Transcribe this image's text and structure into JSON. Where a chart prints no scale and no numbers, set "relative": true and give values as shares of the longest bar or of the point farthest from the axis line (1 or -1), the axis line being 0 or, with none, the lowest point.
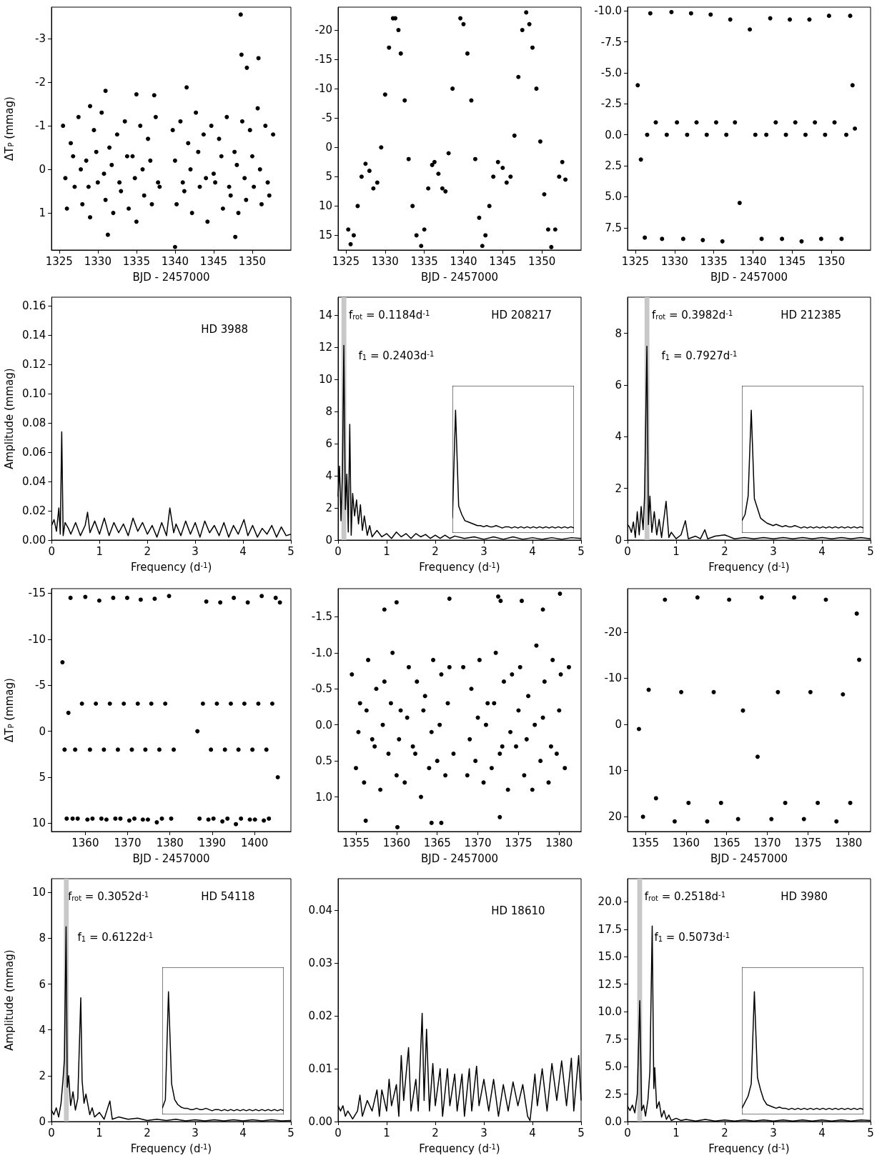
{
  "chart_data": [
    {
      "type": "scatter",
      "xlabel": "BJD - 2457000",
      "ylabel": "ΔT$_{P}$ (mmag)",
      "xlim": [
        1324,
        1355
      ],
      "xticks": [
        1325,
        1330,
        1335,
        1340,
        1345,
        1350
      ],
      "ylim": [
        1.85,
        -3.72
      ],
      "yticks": [
        -3,
        -2,
        -1,
        0,
        1
      ],
      "marker": "circle",
      "series": [
        {
          "color": "#000000",
          "x": [
            1325.5,
            1326,
            1326.5,
            1327,
            1327.5,
            1328,
            1328.5,
            1329,
            1329.5,
            1330,
            1330.5,
            1331,
            1331.5,
            1332,
            1332.5,
            1333,
            1333.5,
            1334,
            1334.5,
            1335,
            1335.5,
            1336,
            1336.5,
            1337,
            1337.5,
            1338,
            1339.7,
            1340.2,
            1340.7,
            1341.2,
            1341.7,
            1342.2,
            1342.7,
            1343.2,
            1343.7,
            1344.2,
            1344.7,
            1345.2,
            1345.7,
            1346.2,
            1346.7,
            1347.2,
            1347.7,
            1348.2,
            1348.7,
            1349.2,
            1349.7,
            1350.2,
            1350.7,
            1351.2,
            1351.7,
            1352.2,
            1352.7,
            1325.8,
            1326.8,
            1327.8,
            1328.8,
            1329.8,
            1330.8,
            1331.8,
            1332.8,
            1333.8,
            1334.8,
            1335.8,
            1336.8,
            1337.8,
            1340,
            1341,
            1342,
            1343,
            1344,
            1345,
            1346,
            1347,
            1348,
            1349,
            1350,
            1351,
            1352,
            1348.5,
            1348.6,
            1350.8,
            1349.3,
            1331,
            1335,
            1337.3,
            1341.5,
            1340,
            1331.3,
            1347.8,
            1329
          ],
          "values": [
            -1.0,
            0.9,
            -0.6,
            0.4,
            -1.2,
            0.8,
            -0.2,
            1.1,
            -0.9,
            0.3,
            -1.3,
            0.7,
            -0.5,
            1.0,
            -0.8,
            0.5,
            -1.1,
            0.9,
            -0.3,
            1.2,
            -1.0,
            0.6,
            -0.7,
            0.8,
            -1.2,
            0.4,
            -0.9,
            0.8,
            -1.1,
            0.5,
            -0.6,
            1.0,
            -1.3,
            0.4,
            -0.8,
            1.2,
            -1.0,
            0.3,
            -0.7,
            0.9,
            -1.2,
            0.6,
            -0.4,
            1.0,
            -1.1,
            0.7,
            -0.9,
            0.4,
            -1.4,
            0.8,
            -1.0,
            0.6,
            -0.8,
            0.2,
            -0.3,
            0.0,
            0.4,
            -0.4,
            0.1,
            -0.1,
            0.3,
            -0.3,
            0.2,
            0,
            -0.2,
            0.3,
            -0.2,
            0.3,
            0,
            -0.4,
            0.2,
            0.1,
            -0.3,
            0.4,
            -0.1,
            0.2,
            -0.3,
            0,
            0.3,
            -3.55,
            -2.63,
            -2.55,
            -2.33,
            -1.8,
            -1.72,
            -1.7,
            -1.88,
            1.78,
            1.5,
            1.55,
            -1.45
          ]
        }
      ]
    },
    {
      "type": "scatter",
      "xlabel": "BJD - 2457000",
      "xlim": [
        1324,
        1355
      ],
      "xticks": [
        1325,
        1330,
        1335,
        1340,
        1345,
        1350
      ],
      "ylim": [
        17.5,
        -23.9
      ],
      "yticks": [
        -20,
        -15,
        -10,
        -5,
        0,
        5,
        10,
        15
      ],
      "marker": "circle",
      "series": [
        {
          "color": "#000000",
          "x": [
            1325.3,
            1325.6,
            1326.0,
            1326.5,
            1327.0,
            1327.5,
            1328.0,
            1328.5,
            1329.0,
            1329.5,
            1330.0,
            1330.5,
            1331.0,
            1331.3,
            1331.7,
            1332.0,
            1332.5,
            1333.0,
            1333.5,
            1334.0,
            1334.6,
            1335.0,
            1335.5,
            1336.0,
            1336.3,
            1336.8,
            1337.3,
            1337.7,
            1338.1,
            1338.6,
            1339.6,
            1340.0,
            1340.5,
            1341.0,
            1341.5,
            1342.0,
            1342.4,
            1342.8,
            1343.3,
            1343.8,
            1344.4,
            1345.0,
            1345.5,
            1346.0,
            1346.5,
            1347.0,
            1347.5,
            1348.0,
            1348.4,
            1348.8,
            1349.3,
            1349.8,
            1350.3,
            1350.8,
            1351.2,
            1351.7,
            1352.2,
            1352.6,
            1353.0
          ],
          "values": [
            14,
            16.5,
            15,
            10,
            5,
            2.8,
            4,
            7,
            6,
            0,
            -9,
            -17,
            -22,
            -22,
            -20,
            -16,
            -8,
            2,
            10,
            15,
            16.8,
            14,
            7,
            3,
            2.5,
            4.5,
            7,
            7.5,
            1,
            -10,
            -22,
            -21,
            -16,
            -8,
            2,
            12,
            16.8,
            15,
            10,
            5,
            2.5,
            3.5,
            6,
            5,
            -2,
            -12,
            -20,
            -23,
            -21,
            -17,
            -10,
            -1,
            8,
            14,
            17,
            14,
            5,
            2.5,
            5.5
          ]
        }
      ]
    },
    {
      "type": "scatter",
      "xlabel": "BJD - 2457000",
      "xlim": [
        1324,
        1355
      ],
      "xticks": [
        1325,
        1330,
        1335,
        1340,
        1345,
        1350
      ],
      "ylim": [
        9.3,
        -10.3
      ],
      "yticks": [
        {
          "value": -10,
          "label": "-10.0"
        },
        -7.5,
        {
          "value": -5,
          "label": "-5.0"
        },
        -2.5,
        {
          "value": 0,
          "label": "0.0"
        },
        2.5,
        {
          "value": 5,
          "label": "5.0"
        },
        7.5
      ],
      "marker": "circle",
      "series": [
        {
          "color": "#000000",
          "x": [
            1325.3,
            1325.7,
            1326.2,
            1326.5,
            1326.9,
            1327.6,
            1328.4,
            1329.0,
            1329.6,
            1330.3,
            1331.1,
            1331.6,
            1332.1,
            1332.8,
            1333.6,
            1334.1,
            1334.6,
            1335.3,
            1336.1,
            1336.6,
            1337.1,
            1337.7,
            1338.3,
            1339.6,
            1340.3,
            1341.1,
            1341.7,
            1342.2,
            1342.9,
            1343.7,
            1344.2,
            1344.7,
            1345.4,
            1346.2,
            1346.7,
            1347.2,
            1347.9,
            1348.7,
            1349.2,
            1349.7,
            1350.4,
            1351.3,
            1351.9,
            1352.4,
            1352.7,
            1353.0
          ],
          "values": [
            -4,
            2,
            8.3,
            0,
            -9.8,
            -1,
            8.4,
            0,
            -9.9,
            -1,
            8.4,
            0,
            -9.8,
            -1,
            8.5,
            0,
            -9.7,
            -1,
            8.6,
            0,
            -9.3,
            -1,
            5.5,
            -8.5,
            0,
            8.4,
            0,
            -9.4,
            -1,
            8.4,
            0,
            -9.3,
            -1,
            8.6,
            0,
            -9.3,
            -1,
            8.4,
            0,
            -9.6,
            -1,
            8.4,
            0,
            -9.6,
            -4,
            -0.5
          ]
        }
      ]
    },
    {
      "type": "line",
      "xlabel": "Frequency (d$^{-1}$)",
      "ylabel": "Amplitude (mmag)",
      "xlim": [
        0,
        5
      ],
      "xticks": [
        0,
        1,
        2,
        3,
        4,
        5
      ],
      "ylim": [
        0,
        0.166
      ],
      "yticks": [
        {
          "value": 0,
          "label": "0.00"
        },
        0.02,
        0.04,
        0.06,
        0.08,
        {
          "value": 0.1,
          "label": "0.10"
        },
        0.12,
        0.14,
        0.16
      ],
      "marker": "none",
      "annotations": [
        "HD 3988"
      ],
      "series": [
        {
          "color": "#000000",
          "x": [
            0,
            0.05,
            0.1,
            0.15,
            0.18,
            0.21,
            0.24,
            0.28,
            0.35,
            0.4,
            0.5,
            0.6,
            0.7,
            0.75,
            0.8,
            0.9,
            1.0,
            1.1,
            1.2,
            1.3,
            1.4,
            1.5,
            1.6,
            1.7,
            1.8,
            1.9,
            2.0,
            2.1,
            2.2,
            2.3,
            2.4,
            2.47,
            2.55,
            2.6,
            2.7,
            2.8,
            2.9,
            3.0,
            3.1,
            3.2,
            3.3,
            3.4,
            3.5,
            3.6,
            3.7,
            3.8,
            3.9,
            4.02,
            4.1,
            4.2,
            4.3,
            4.4,
            4.5,
            4.6,
            4.7,
            4.8,
            4.9,
            5.0
          ],
          "values": [
            0.01,
            0.014,
            0.006,
            0.022,
            0.004,
            0.074,
            0.003,
            0.012,
            0.008,
            0.004,
            0.012,
            0.003,
            0.01,
            0.019,
            0.005,
            0.013,
            0.004,
            0.015,
            0.003,
            0.012,
            0.005,
            0.011,
            0.003,
            0.015,
            0.006,
            0.012,
            0.004,
            0.01,
            0.002,
            0.012,
            0.003,
            0.022,
            0.005,
            0.011,
            0.003,
            0.013,
            0.004,
            0.012,
            0.002,
            0.013,
            0.005,
            0.01,
            0.003,
            0.012,
            0.002,
            0.01,
            0.004,
            0.014,
            0.003,
            0.01,
            0.002,
            0.008,
            0.004,
            0.01,
            0.002,
            0.009,
            0.003,
            0.004
          ]
        }
      ]
    },
    {
      "type": "line",
      "xlabel": "Frequency (d$^{-1}$)",
      "xlim": [
        0,
        5
      ],
      "xticks": [
        0,
        1,
        2,
        3,
        4,
        5
      ],
      "ylim": [
        0,
        15.1
      ],
      "yticks": [
        0,
        2,
        4,
        6,
        8,
        10,
        12,
        14
      ],
      "marker": "none",
      "annotations": [
        "f$_{rot}$ = 0.1184d$^{-1}$",
        "f$_{1}$ = 0.2403d$^{-1}$",
        "HD 208217"
      ],
      "bands": [
        {
          "axis": "x",
          "from": 0.07,
          "to": 0.17,
          "color": "#c8c8c8"
        }
      ],
      "series": [
        {
          "color": "#000000",
          "x": [
            0,
            0.03,
            0.06,
            0.09,
            0.1184,
            0.15,
            0.18,
            0.21,
            0.2403,
            0.27,
            0.3,
            0.34,
            0.38,
            0.42,
            0.46,
            0.5,
            0.54,
            0.6,
            0.65,
            0.7,
            0.8,
            0.9,
            1.0,
            1.1,
            1.2,
            1.3,
            1.4,
            1.5,
            1.6,
            1.7,
            1.8,
            1.9,
            2.0,
            2.1,
            2.2,
            2.3,
            2.4,
            2.6,
            2.8,
            3.0,
            3.2,
            3.4,
            3.6,
            3.8,
            4.0,
            4.2,
            4.4,
            4.6,
            4.8,
            5.0
          ],
          "values": [
            2.7,
            4.6,
            1.2,
            4.2,
            12.1,
            1.9,
            4.1,
            0.5,
            7.2,
            0.3,
            2.9,
            1.5,
            2.5,
            1.0,
            2.2,
            0.6,
            1.5,
            0.3,
            0.9,
            0.2,
            0.6,
            0.2,
            0.4,
            0.1,
            0.5,
            0.2,
            0.4,
            0.1,
            0.4,
            0.2,
            0.35,
            0.1,
            0.3,
            0.1,
            0.3,
            0.1,
            0.25,
            0.1,
            0.2,
            0.05,
            0.2,
            0.05,
            0.2,
            0.05,
            0.15,
            0.05,
            0.15,
            0.05,
            0.15,
            0.1
          ]
        }
      ]
    },
    {
      "type": "line",
      "relative": true,
      "tick_labels": false,
      "marker": "none",
      "categories": [
        null,
        null,
        null,
        null,
        null,
        null,
        null,
        null,
        null,
        null,
        null,
        null,
        null,
        null,
        null,
        null,
        null,
        null,
        null,
        null,
        null,
        null,
        null,
        null,
        null,
        null,
        null,
        null,
        null,
        null,
        null,
        null,
        null,
        null,
        null,
        null,
        null,
        null,
        null,
        null
      ],
      "series": [
        {
          "color": "#000000",
          "values": [
            0.12,
            1.0,
            0.22,
            0.15,
            0.1,
            0.09,
            0.08,
            0.07,
            0.06,
            0.06,
            0.05,
            0.06,
            0.05,
            0.05,
            0.06,
            0.05,
            0.04,
            0.05,
            0.05,
            0.04,
            0.05,
            0.04,
            0.05,
            0.04,
            0.05,
            0.04,
            0.05,
            0.04,
            0.05,
            0.04,
            0.05,
            0.04,
            0.05,
            0.04,
            0.05,
            0.04,
            0.05,
            0.04,
            0.05,
            0.04
          ]
        }
      ]
    },
    {
      "type": "line",
      "xlabel": "Frequency (d$^{-1}$)",
      "xlim": [
        0,
        5
      ],
      "xticks": [
        0,
        1,
        2,
        3,
        4,
        5
      ],
      "ylim": [
        0,
        9.4
      ],
      "yticks": [
        0,
        2,
        4,
        6,
        8
      ],
      "marker": "none",
      "annotations": [
        "f$_{rot}$ = 0.3982d$^{-1}$",
        "f$_{1}$ = 0.7927d$^{-1}$",
        "HD 212385"
      ],
      "bands": [
        {
          "axis": "x",
          "from": 0.35,
          "to": 0.45,
          "color": "#c8c8c8"
        }
      ],
      "series": [
        {
          "color": "#000000",
          "x": [
            0,
            0.04,
            0.08,
            0.12,
            0.16,
            0.2,
            0.24,
            0.28,
            0.32,
            0.35,
            0.3982,
            0.43,
            0.46,
            0.5,
            0.55,
            0.6,
            0.65,
            0.7,
            0.7927,
            0.85,
            0.9,
            1.0,
            1.1,
            1.19,
            1.25,
            1.4,
            1.5,
            1.59,
            1.65,
            1.8,
            2.0,
            2.2,
            2.4,
            2.6,
            2.8,
            3.0,
            3.2,
            3.4,
            3.6,
            3.8,
            4.0,
            4.2,
            4.4,
            4.6,
            4.8,
            5.0
          ],
          "values": [
            0.6,
            0.5,
            0.3,
            0.7,
            0.1,
            1.1,
            0.2,
            1.3,
            0.4,
            1.7,
            7.5,
            0.6,
            1.7,
            0.3,
            1.1,
            0.2,
            0.8,
            0.1,
            1.5,
            0.1,
            0.3,
            0.05,
            0.2,
            0.75,
            0.05,
            0.15,
            0.05,
            0.4,
            0.05,
            0.15,
            0.2,
            0.05,
            0.1,
            0.05,
            0.1,
            0.05,
            0.1,
            0.05,
            0.1,
            0.05,
            0.1,
            0.05,
            0.1,
            0.05,
            0.1,
            0.05
          ]
        }
      ]
    },
    {
      "type": "line",
      "relative": true,
      "tick_labels": false,
      "marker": "none",
      "categories": [
        null,
        null,
        null,
        null,
        null,
        null,
        null,
        null,
        null,
        null,
        null,
        null,
        null,
        null,
        null,
        null,
        null,
        null,
        null,
        null,
        null,
        null,
        null,
        null,
        null,
        null,
        null,
        null,
        null,
        null,
        null,
        null,
        null,
        null,
        null,
        null,
        null,
        null,
        null,
        null
      ],
      "series": [
        {
          "color": "#000000",
          "values": [
            0.1,
            0.15,
            0.3,
            1.0,
            0.28,
            0.2,
            0.12,
            0.1,
            0.08,
            0.07,
            0.06,
            0.07,
            0.06,
            0.05,
            0.06,
            0.05,
            0.05,
            0.06,
            0.05,
            0.04,
            0.05,
            0.04,
            0.05,
            0.04,
            0.05,
            0.04,
            0.05,
            0.04,
            0.05,
            0.04,
            0.05,
            0.04,
            0.05,
            0.04,
            0.05,
            0.04,
            0.05,
            0.04,
            0.05,
            0.04
          ]
        }
      ]
    },
    {
      "type": "scatter",
      "xlabel": "BJD - 2457000",
      "ylabel": "ΔT$_{P}$ (mmag)",
      "xlim": [
        1352,
        1408.6
      ],
      "xticks": [
        1360,
        1370,
        1380,
        1390,
        1400
      ],
      "ylim": [
        10.9,
        -15.5
      ],
      "yticks": [
        -15,
        -10,
        -5,
        0,
        5,
        10
      ],
      "marker": "circle",
      "series": [
        {
          "color": "#000000",
          "x": [
            1354.6,
            1355.1,
            1355.6,
            1356.0,
            1356.5,
            1357.0,
            1357.6,
            1358.2,
            1359.2,
            1360.0,
            1360.5,
            1361.1,
            1361.7,
            1362.5,
            1363.3,
            1363.8,
            1364.4,
            1365.0,
            1365.8,
            1366.6,
            1367.1,
            1367.7,
            1368.3,
            1369.1,
            1369.9,
            1370.4,
            1371.0,
            1371.6,
            1372.4,
            1373.1,
            1373.6,
            1374.2,
            1374.8,
            1375.6,
            1376.4,
            1376.9,
            1377.5,
            1378.1,
            1378.9,
            1379.8,
            1380.3,
            1380.9,
            1386.5,
            1387.0,
            1387.8,
            1388.6,
            1389.1,
            1389.7,
            1390.3,
            1391.1,
            1391.9,
            1392.4,
            1393.0,
            1393.6,
            1394.4,
            1395.1,
            1395.6,
            1396.2,
            1396.8,
            1397.6,
            1398.4,
            1398.9,
            1399.5,
            1400.1,
            1400.9,
            1401.7,
            1402.2,
            1402.8,
            1403.4,
            1404.2,
            1405.0,
            1405.5,
            1406.0
          ],
          "values": [
            -7.5,
            2,
            9.5,
            -2,
            -14.5,
            9.5,
            2,
            9.5,
            -3,
            -14.6,
            9.6,
            2,
            9.5,
            -3,
            -14.2,
            9.5,
            2,
            9.6,
            -3,
            -14.5,
            9.5,
            2,
            9.5,
            -3,
            -14.5,
            9.7,
            2,
            9.5,
            -3,
            -14.3,
            9.6,
            2,
            9.6,
            -3,
            -14.4,
            9.9,
            2,
            9.5,
            -3,
            -14.7,
            9.5,
            2,
            0,
            9.5,
            -3,
            -14.1,
            9.6,
            2,
            9.5,
            -3,
            -14.0,
            9.8,
            2,
            9.5,
            -3,
            -14.5,
            10.1,
            2,
            9.5,
            -3,
            -14.0,
            9.6,
            2,
            9.6,
            -3,
            -14.7,
            9.7,
            2,
            9.5,
            -3,
            -14.5,
            5,
            -14
          ]
        }
      ]
    },
    {
      "type": "scatter",
      "xlabel": "BJD - 2457000",
      "xlim": [
        1352.8,
        1382.7
      ],
      "xticks": [
        1355,
        1360,
        1365,
        1370,
        1375,
        1380
      ],
      "ylim": [
        1.48,
        -1.89
      ],
      "yticks": [
        -1.5,
        {
          "value": -1,
          "label": "-1.0"
        },
        -0.5,
        {
          "value": 0,
          "label": "0.0"
        },
        0.5,
        {
          "value": 1,
          "label": "1.0"
        }
      ],
      "marker": "circle",
      "series": [
        {
          "color": "#000000",
          "x": [
            1354.5,
            1355,
            1355.5,
            1356,
            1356.5,
            1357,
            1357.5,
            1358,
            1358.5,
            1359,
            1359.5,
            1360,
            1360.5,
            1361,
            1361.5,
            1362,
            1362.5,
            1363,
            1363.5,
            1364,
            1364.5,
            1365,
            1365.5,
            1366,
            1366.5,
            1367,
            1368.2,
            1368.7,
            1369.2,
            1369.7,
            1370.2,
            1370.7,
            1371.2,
            1371.7,
            1372.2,
            1372.7,
            1373.2,
            1373.7,
            1374.2,
            1374.7,
            1375.2,
            1375.7,
            1376.2,
            1376.7,
            1377.2,
            1377.7,
            1378.2,
            1378.7,
            1379.2,
            1379.7,
            1380.2,
            1380.7,
            1381.2,
            1355.3,
            1356.3,
            1357.3,
            1358.3,
            1359.3,
            1360.3,
            1361.3,
            1362.3,
            1363.3,
            1364.3,
            1365.3,
            1366.3,
            1369,
            1370,
            1371,
            1372,
            1373,
            1374,
            1375,
            1376,
            1377,
            1378,
            1379,
            1380,
            1358.5,
            1360,
            1366.5,
            1372.5,
            1372.8,
            1375.4,
            1380.1,
            1378,
            1360.1,
            1364.3,
            1365.5,
            1372.7,
            1356.2
          ],
          "values": [
            -0.7,
            0.6,
            -0.3,
            0.8,
            -0.9,
            0.2,
            -0.5,
            0.9,
            -0.6,
            0.4,
            -1.0,
            0.7,
            -0.2,
            0.8,
            -0.8,
            0.3,
            -0.6,
            1.0,
            -0.4,
            0.6,
            -0.9,
            0.5,
            -0.7,
            0.7,
            -0.8,
            0.4,
            -0.8,
            0.7,
            -0.5,
            0.5,
            -0.9,
            0.8,
            -0.3,
            0.6,
            -1.0,
            0.4,
            -0.6,
            0.9,
            -0.7,
            0.3,
            -0.8,
            0.7,
            -0.4,
            0.9,
            -1.1,
            0.5,
            -0.6,
            0.8,
            -0.9,
            0.4,
            -0.7,
            0.6,
            -0.8,
            0.1,
            -0.2,
            0.3,
            0,
            -0.3,
            0.2,
            -0.1,
            0.4,
            -0.2,
            0.1,
            0,
            -0.3,
            0.2,
            -0.1,
            0,
            -0.3,
            0.3,
            0.1,
            -0.2,
            0.2,
            0,
            -0.1,
            0.3,
            -0.2,
            -1.6,
            -1.7,
            -1.75,
            -1.78,
            -1.72,
            -1.72,
            -1.82,
            -1.6,
            1.42,
            1.36,
            1.36,
            1.28,
            1.33
          ]
        }
      ]
    },
    {
      "type": "scatter",
      "xlabel": "BJD - 2457000",
      "xlim": [
        1352.8,
        1382.7
      ],
      "xticks": [
        1355,
        1360,
        1365,
        1370,
        1375,
        1380
      ],
      "ylim": [
        23.2,
        -29.4
      ],
      "yticks": [
        -20,
        -10,
        0,
        10,
        20
      ],
      "marker": "circle",
      "series": [
        {
          "color": "#000000",
          "x": [
            1354.2,
            1354.7,
            1355.4,
            1356.3,
            1357.4,
            1358.6,
            1359.4,
            1360.3,
            1361.4,
            1362.6,
            1363.4,
            1364.3,
            1365.3,
            1366.4,
            1367.0,
            1368.8,
            1369.3,
            1370.5,
            1371.3,
            1372.2,
            1373.3,
            1374.5,
            1375.3,
            1376.2,
            1377.2,
            1378.5,
            1379.3,
            1380.2,
            1381.0,
            1381.3
          ],
          "values": [
            1,
            20,
            -7.5,
            16,
            -27,
            21,
            -7,
            17,
            -27.5,
            21,
            -7,
            17,
            -27,
            20.5,
            -3,
            7,
            -27.5,
            20.5,
            -7,
            17,
            -27.5,
            20.5,
            -7,
            17,
            -27,
            21,
            -6.5,
            17,
            -24,
            -14
          ]
        }
      ]
    },
    {
      "type": "line",
      "xlabel": "Frequency (d$^{-1}$)",
      "ylabel": "Amplitude (mmag)",
      "xlim": [
        0,
        5
      ],
      "xticks": [
        0,
        1,
        2,
        3,
        4,
        5
      ],
      "ylim": [
        0,
        10.6
      ],
      "yticks": [
        0,
        2,
        4,
        6,
        8,
        10
      ],
      "marker": "none",
      "annotations": [
        "f$_{rot}$ = 0.3052d$^{-1}$",
        "f$_{1}$ = 0.6122d$^{-1}$",
        "HD 54118"
      ],
      "bands": [
        {
          "axis": "x",
          "from": 0.26,
          "to": 0.36,
          "color": "#c8c8c8"
        }
      ],
      "series": [
        {
          "color": "#000000",
          "x": [
            0,
            0.05,
            0.1,
            0.15,
            0.2,
            0.24,
            0.27,
            0.3052,
            0.33,
            0.36,
            0.4,
            0.45,
            0.5,
            0.55,
            0.6122,
            0.64,
            0.68,
            0.72,
            0.8,
            0.85,
            0.9,
            1.0,
            1.1,
            1.22,
            1.27,
            1.4,
            1.6,
            1.8,
            2.0,
            2.2,
            2.4,
            2.6,
            2.8,
            3.0,
            3.2,
            3.4,
            3.6,
            3.8,
            4.0,
            4.2,
            4.4,
            4.6,
            4.8,
            5.0
          ],
          "values": [
            0.5,
            0.3,
            0.6,
            0.2,
            0.8,
            1.8,
            2.7,
            8.5,
            1.5,
            2.0,
            0.7,
            1.3,
            0.5,
            1.0,
            5.4,
            1.8,
            0.8,
            1.2,
            0.3,
            0.6,
            0.2,
            0.4,
            0.1,
            0.9,
            0.1,
            0.2,
            0.1,
            0.15,
            0.05,
            0.1,
            0.05,
            0.1,
            0.03,
            0.08,
            0.03,
            0.08,
            0.03,
            0.08,
            0.03,
            0.08,
            0.03,
            0.08,
            0.03,
            0.05
          ]
        }
      ]
    },
    {
      "type": "line",
      "relative": true,
      "tick_labels": false,
      "marker": "none",
      "categories": [
        null,
        null,
        null,
        null,
        null,
        null,
        null,
        null,
        null,
        null,
        null,
        null,
        null,
        null,
        null,
        null,
        null,
        null,
        null,
        null,
        null,
        null,
        null,
        null,
        null,
        null,
        null,
        null,
        null,
        null,
        null,
        null,
        null,
        null,
        null,
        null,
        null,
        null,
        null,
        null
      ],
      "series": [
        {
          "color": "#000000",
          "values": [
            0.05,
            0.12,
            1.0,
            0.25,
            0.12,
            0.08,
            0.06,
            0.05,
            0.05,
            0.04,
            0.04,
            0.05,
            0.04,
            0.04,
            0.05,
            0.04,
            0.03,
            0.04,
            0.04,
            0.03,
            0.04,
            0.03,
            0.04,
            0.03,
            0.04,
            0.03,
            0.04,
            0.03,
            0.04,
            0.03,
            0.04,
            0.03,
            0.04,
            0.03,
            0.04,
            0.03,
            0.04,
            0.03,
            0.04,
            0.03
          ]
        }
      ]
    },
    {
      "type": "line",
      "xlabel": "Frequency (d$^{-1}$)",
      "xlim": [
        0,
        5
      ],
      "xticks": [
        0,
        1,
        2,
        3,
        4,
        5
      ],
      "ylim": [
        0,
        0.046
      ],
      "yticks": [
        {
          "value": 0,
          "label": "0.00"
        },
        0.01,
        0.02,
        0.03,
        0.04
      ],
      "marker": "none",
      "annotations": [
        "HD 18610"
      ],
      "series": [
        {
          "color": "#000000",
          "x": [
            0,
            0.05,
            0.1,
            0.15,
            0.2,
            0.3,
            0.4,
            0.45,
            0.5,
            0.6,
            0.7,
            0.8,
            0.85,
            0.9,
            1.0,
            1.05,
            1.1,
            1.2,
            1.25,
            1.3,
            1.35,
            1.45,
            1.5,
            1.6,
            1.65,
            1.73,
            1.77,
            1.82,
            1.88,
            1.95,
            2.0,
            2.1,
            2.15,
            2.25,
            2.3,
            2.4,
            2.45,
            2.55,
            2.6,
            2.7,
            2.75,
            2.85,
            2.9,
            3.0,
            3.1,
            3.2,
            3.3,
            3.4,
            3.5,
            3.6,
            3.7,
            3.8,
            3.9,
            3.95,
            4.05,
            4.1,
            4.2,
            4.3,
            4.4,
            4.5,
            4.6,
            4.7,
            4.8,
            4.85,
            4.95,
            5.0
          ],
          "values": [
            0.003,
            0.002,
            0.003,
            0.001,
            0.002,
            0.0005,
            0.002,
            0.005,
            0.001,
            0.004,
            0.002,
            0.006,
            0.001,
            0.006,
            0.002,
            0.008,
            0.003,
            0.007,
            0.001,
            0.0125,
            0.004,
            0.014,
            0.002,
            0.008,
            0.002,
            0.0205,
            0.004,
            0.0175,
            0.002,
            0.011,
            0.003,
            0.01,
            0.001,
            0.01,
            0.003,
            0.009,
            0.002,
            0.009,
            0.001,
            0.01,
            0.002,
            0.0105,
            0.003,
            0.008,
            0.002,
            0.008,
            0.001,
            0.007,
            0.002,
            0.0075,
            0.003,
            0.007,
            0.001,
            0.0002,
            0.009,
            0.003,
            0.01,
            0.002,
            0.011,
            0.004,
            0.0115,
            0.003,
            0.012,
            0.002,
            0.0125,
            0.004
          ]
        }
      ]
    },
    {
      "type": "line",
      "xlabel": "Frequency (d$^{-1}$)",
      "xlim": [
        0,
        5
      ],
      "xticks": [
        0,
        1,
        2,
        3,
        4,
        5
      ],
      "ylim": [
        0,
        22.1
      ],
      "yticks": [
        {
          "value": 0,
          "label": "0.0"
        },
        2.5,
        {
          "value": 5,
          "label": "5.0"
        },
        7.5,
        {
          "value": 10,
          "label": "10.0"
        },
        12.5,
        {
          "value": 15,
          "label": "15.0"
        },
        17.5,
        {
          "value": 20,
          "label": "20.0"
        }
      ],
      "marker": "none",
      "annotations": [
        "f$_{rot}$ = 0.2518d$^{-1}$",
        "f$_{1}$ = 0.5073d$^{-1}$",
        "HD 3980"
      ],
      "bands": [
        {
          "axis": "x",
          "from": 0.2,
          "to": 0.3,
          "color": "#c8c8c8"
        }
      ],
      "series": [
        {
          "color": "#000000",
          "x": [
            0,
            0.05,
            0.1,
            0.15,
            0.2,
            0.2518,
            0.29,
            0.33,
            0.37,
            0.42,
            0.46,
            0.5073,
            0.54,
            0.56,
            0.6,
            0.65,
            0.7,
            0.75,
            0.8,
            0.85,
            0.9,
            1.0,
            1.1,
            1.2,
            1.4,
            1.6,
            1.8,
            2.0,
            2.2,
            2.4,
            2.6,
            2.8,
            3.0,
            3.2,
            3.4,
            3.6,
            3.8,
            4.0,
            4.2,
            4.4,
            4.6,
            4.8,
            5.0
          ],
          "values": [
            1.4,
            1.0,
            1.5,
            0.8,
            2.5,
            11.0,
            1.0,
            1.5,
            0.5,
            2.0,
            4.6,
            17.8,
            3.0,
            4.9,
            1.2,
            1.8,
            0.4,
            1.0,
            0.2,
            0.6,
            0.1,
            0.3,
            0.1,
            0.2,
            0.05,
            0.2,
            0.05,
            0.15,
            0.05,
            0.15,
            0.05,
            0.15,
            0.05,
            0.15,
            0.05,
            0.15,
            0.05,
            0.15,
            0.05,
            0.15,
            0.05,
            0.15,
            0.1
          ]
        }
      ]
    },
    {
      "type": "line",
      "relative": true,
      "tick_labels": false,
      "marker": "none",
      "categories": [
        null,
        null,
        null,
        null,
        null,
        null,
        null,
        null,
        null,
        null,
        null,
        null,
        null,
        null,
        null,
        null,
        null,
        null,
        null,
        null,
        null,
        null,
        null,
        null,
        null,
        null,
        null,
        null,
        null,
        null,
        null,
        null,
        null,
        null,
        null,
        null,
        null,
        null,
        null,
        null
      ],
      "series": [
        {
          "color": "#000000",
          "values": [
            0.05,
            0.1,
            0.15,
            0.25,
            1.0,
            0.3,
            0.2,
            0.12,
            0.08,
            0.07,
            0.06,
            0.05,
            0.06,
            0.05,
            0.05,
            0.04,
            0.05,
            0.04,
            0.05,
            0.04,
            0.05,
            0.04,
            0.05,
            0.04,
            0.05,
            0.04,
            0.05,
            0.04,
            0.05,
            0.04,
            0.05,
            0.04,
            0.05,
            0.04,
            0.05,
            0.04,
            0.05,
            0.04,
            0.05,
            0.04
          ]
        }
      ]
    }
  ]
}
